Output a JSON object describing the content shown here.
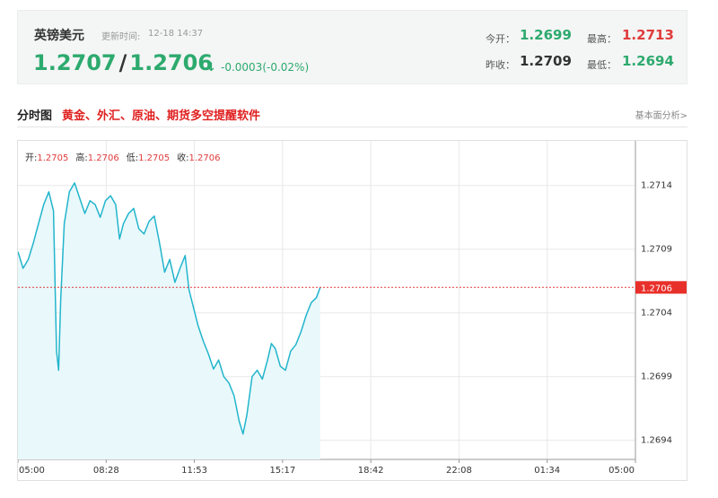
{
  "quote": {
    "name": "英镑美元",
    "time_label": "更新时间:",
    "time": "12-18 14:37",
    "bid": "1.2707",
    "separator": "/",
    "ask": "1.2706",
    "arrow": "↓",
    "change": "-0.0003(-0.02%)",
    "stats": {
      "open_label": "今开：",
      "open": "1.2699",
      "high_label": "最高：",
      "high": "1.2713",
      "prev_close_label": "昨收：",
      "prev_close": "1.2709",
      "low_label": "最低：",
      "low": "1.2694"
    },
    "colors": {
      "up": "#e03c3c",
      "down": "#2daa6e"
    }
  },
  "section": {
    "title": "分时图",
    "promo": "黄金、外汇、原油、期货多空提醒软件",
    "link": "基本面分析>"
  },
  "ohlc": {
    "open_label": "开:",
    "open": "1.2705",
    "high_label": "高:",
    "high": "1.2706",
    "low_label": "低:",
    "low": "1.2705",
    "close_label": "收:",
    "close": "1.2706"
  },
  "chart_data": {
    "type": "area",
    "x_ticks": [
      "05:00",
      "08:28",
      "11:53",
      "15:17",
      "18:42",
      "22:08",
      "01:34",
      "05:00"
    ],
    "y_ticks": [
      1.2714,
      1.2709,
      1.2704,
      1.2699,
      1.2694
    ],
    "ylim": [
      1.26925,
      1.27175
    ],
    "x_range_hours": [
      0,
      24
    ],
    "last_price": 1.2706,
    "last_price_label": "1.2706",
    "grid": true,
    "line_color": "#22b5cc",
    "fill_color": "#e9f8fb",
    "ref_line_color": "#e03c3c",
    "series": [
      {
        "points": [
          [
            0.0,
            1.27088
          ],
          [
            0.2,
            1.27075
          ],
          [
            0.4,
            1.27082
          ],
          [
            0.6,
            1.27095
          ],
          [
            0.8,
            1.2711
          ],
          [
            1.0,
            1.27125
          ],
          [
            1.2,
            1.27135
          ],
          [
            1.38,
            1.2712
          ],
          [
            1.5,
            1.2701
          ],
          [
            1.58,
            1.26995
          ],
          [
            1.66,
            1.2705
          ],
          [
            1.8,
            1.2711
          ],
          [
            2.0,
            1.27135
          ],
          [
            2.2,
            1.27142
          ],
          [
            2.4,
            1.2713
          ],
          [
            2.6,
            1.27118
          ],
          [
            2.8,
            1.27128
          ],
          [
            3.0,
            1.27125
          ],
          [
            3.2,
            1.27115
          ],
          [
            3.4,
            1.27128
          ],
          [
            3.6,
            1.27132
          ],
          [
            3.8,
            1.27125
          ],
          [
            3.95,
            1.27098
          ],
          [
            4.1,
            1.2711
          ],
          [
            4.3,
            1.27118
          ],
          [
            4.5,
            1.27122
          ],
          [
            4.7,
            1.27106
          ],
          [
            4.9,
            1.27102
          ],
          [
            5.1,
            1.27112
          ],
          [
            5.3,
            1.27116
          ],
          [
            5.5,
            1.27095
          ],
          [
            5.7,
            1.27072
          ],
          [
            5.9,
            1.27082
          ],
          [
            6.1,
            1.27064
          ],
          [
            6.3,
            1.27075
          ],
          [
            6.5,
            1.27085
          ],
          [
            6.65,
            1.27058
          ],
          [
            6.85,
            1.27042
          ],
          [
            7.0,
            1.2703
          ],
          [
            7.2,
            1.27018
          ],
          [
            7.4,
            1.27008
          ],
          [
            7.6,
            1.26996
          ],
          [
            7.8,
            1.27003
          ],
          [
            8.0,
            1.2699
          ],
          [
            8.2,
            1.26985
          ],
          [
            8.4,
            1.26975
          ],
          [
            8.6,
            1.26955
          ],
          [
            8.75,
            1.26945
          ],
          [
            8.9,
            1.2696
          ],
          [
            9.1,
            1.2699
          ],
          [
            9.3,
            1.26995
          ],
          [
            9.5,
            1.26988
          ],
          [
            9.7,
            1.27003
          ],
          [
            9.85,
            1.27016
          ],
          [
            10.0,
            1.27012
          ],
          [
            10.2,
            1.26998
          ],
          [
            10.4,
            1.26995
          ],
          [
            10.6,
            1.2701
          ],
          [
            10.8,
            1.27015
          ],
          [
            11.0,
            1.27025
          ],
          [
            11.2,
            1.27038
          ],
          [
            11.4,
            1.27048
          ],
          [
            11.6,
            1.27052
          ],
          [
            11.75,
            1.2706
          ]
        ]
      }
    ]
  }
}
